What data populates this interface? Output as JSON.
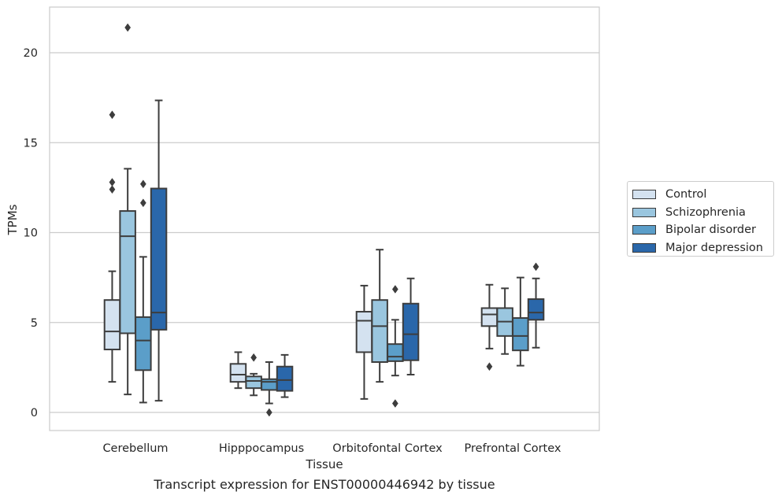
{
  "chart_data": {
    "type": "box",
    "title": "",
    "caption": "Transcript expression for ENST00000446942 by tissue",
    "xlabel": "Tissue",
    "ylabel": "TPMs",
    "ylim": [
      -1,
      22.5
    ],
    "yticks": [
      0,
      5,
      10,
      15,
      20
    ],
    "grid": "horizontal",
    "legend_position": "right",
    "categories": [
      "Cerebellum",
      "Hipppocampus",
      "Orbitofontal Cortex",
      "Prefrontal Cortex"
    ],
    "series": [
      {
        "name": "Control",
        "color": "#d4e2f0",
        "boxes": [
          {
            "min": 1.7,
            "q1": 3.5,
            "median": 4.5,
            "q3": 6.25,
            "max": 7.85,
            "outliers": [
              12.4,
              12.8,
              16.55
            ]
          },
          {
            "min": 1.35,
            "q1": 1.7,
            "median": 2.1,
            "q3": 2.7,
            "max": 3.35,
            "outliers": []
          },
          {
            "min": 0.75,
            "q1": 3.35,
            "median": 5.1,
            "q3": 5.6,
            "max": 7.05,
            "outliers": []
          },
          {
            "min": 3.55,
            "q1": 4.8,
            "median": 5.45,
            "q3": 5.8,
            "max": 7.1,
            "outliers": [
              2.55
            ]
          }
        ]
      },
      {
        "name": "Schizophrenia",
        "color": "#9ac6df",
        "boxes": [
          {
            "min": 1.0,
            "q1": 4.4,
            "median": 9.8,
            "q3": 11.2,
            "max": 13.55,
            "outliers": [
              21.4
            ]
          },
          {
            "min": 0.95,
            "q1": 1.35,
            "median": 1.75,
            "q3": 2.0,
            "max": 2.15,
            "outliers": [
              3.05
            ]
          },
          {
            "min": 1.7,
            "q1": 2.8,
            "median": 4.8,
            "q3": 6.25,
            "max": 9.05,
            "outliers": []
          },
          {
            "min": 3.25,
            "q1": 4.25,
            "median": 5.05,
            "q3": 5.8,
            "max": 6.9,
            "outliers": []
          }
        ]
      },
      {
        "name": "Bipolar disorder",
        "color": "#5b9ec9",
        "boxes": [
          {
            "min": 0.55,
            "q1": 2.35,
            "median": 4.0,
            "q3": 5.3,
            "max": 8.65,
            "outliers": [
              11.65,
              12.7
            ]
          },
          {
            "min": 0.5,
            "q1": 1.25,
            "median": 1.7,
            "q3": 1.85,
            "max": 2.8,
            "outliers": [
              0.0
            ]
          },
          {
            "min": 2.05,
            "q1": 2.85,
            "median": 3.1,
            "q3": 3.8,
            "max": 5.15,
            "outliers": [
              0.5,
              6.85
            ]
          },
          {
            "min": 2.6,
            "q1": 3.45,
            "median": 4.25,
            "q3": 5.25,
            "max": 7.5,
            "outliers": []
          }
        ]
      },
      {
        "name": "Major depression",
        "color": "#2a67aa",
        "boxes": [
          {
            "min": 0.65,
            "q1": 4.6,
            "median": 5.55,
            "q3": 12.45,
            "max": 17.35,
            "outliers": []
          },
          {
            "min": 0.85,
            "q1": 1.2,
            "median": 1.8,
            "q3": 2.55,
            "max": 3.2,
            "outliers": []
          },
          {
            "min": 2.1,
            "q1": 2.9,
            "median": 4.35,
            "q3": 6.05,
            "max": 7.45,
            "outliers": []
          },
          {
            "min": 3.6,
            "q1": 5.15,
            "median": 5.55,
            "q3": 6.3,
            "max": 7.45,
            "outliers": [
              8.1
            ]
          }
        ]
      }
    ]
  }
}
